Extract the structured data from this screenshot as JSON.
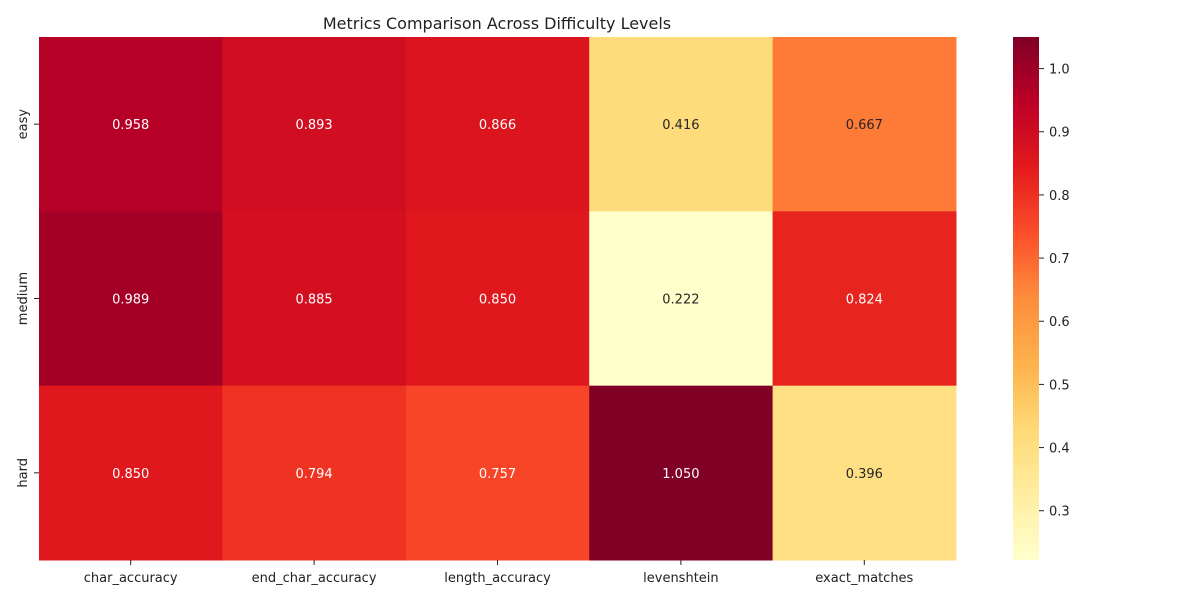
{
  "chart_data": {
    "type": "heatmap",
    "title": "Metrics Comparison Across Difficulty Levels",
    "xlabel": "",
    "ylabel": "",
    "x_categories": [
      "char_accuracy",
      "end_char_accuracy",
      "length_accuracy",
      "levenshtein",
      "exact_matches"
    ],
    "y_categories": [
      "easy",
      "medium",
      "hard"
    ],
    "values": [
      [
        0.958,
        0.893,
        0.866,
        0.416,
        0.667
      ],
      [
        0.989,
        0.885,
        0.85,
        0.222,
        0.824
      ],
      [
        0.85,
        0.794,
        0.757,
        1.05,
        0.396
      ]
    ],
    "value_format": "3 decimals",
    "colormap": "YlOrRd",
    "colorbar": {
      "vmin": 0.222,
      "vmax": 1.05,
      "ticks": [
        0.3,
        0.4,
        0.5,
        0.6,
        0.7,
        0.8,
        0.9,
        1.0
      ],
      "tick_labels": [
        "0.3",
        "0.4",
        "0.5",
        "0.6",
        "0.7",
        "0.8",
        "0.9",
        "1.0"
      ]
    },
    "grid": false,
    "legend": "colorbar-right"
  }
}
